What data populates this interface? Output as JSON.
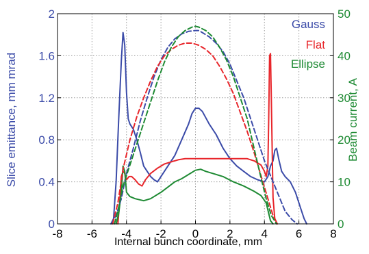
{
  "chart_data": {
    "type": "line",
    "xlabel": "Internal bunch coordinate, mm",
    "ylabel_left": "Slice emittance, mm mrad",
    "ylabel_right": "Beam current, A",
    "xlim": [
      -8,
      8
    ],
    "ylim_left": [
      0,
      2
    ],
    "ylim_right": [
      0,
      50
    ],
    "x_ticks": [
      "-8",
      "-6",
      "-4",
      "-2",
      "0",
      "2",
      "4",
      "6",
      "8"
    ],
    "y_left_ticks": [
      "0",
      "0.4",
      "0.8",
      "1.2",
      "1.6",
      "2"
    ],
    "y_right_ticks": [
      "0",
      "10",
      "20",
      "30",
      "40",
      "50"
    ],
    "grid": true,
    "legend": [
      {
        "name": "Gauss",
        "color": "#3b4ba8"
      },
      {
        "name": "Flat",
        "color": "#e8262b"
      },
      {
        "name": "Ellipse",
        "color": "#1e8a33"
      }
    ],
    "series": [
      {
        "name": "Gauss",
        "quantity": "emittance",
        "axis": "left",
        "style": "solid",
        "color": "#3b4ba8",
        "x": [
          -4.9,
          -4.75,
          -4.6,
          -4.45,
          -4.3,
          -4.2,
          -4.1,
          -4.0,
          -3.9,
          -3.8,
          -3.6,
          -3.4,
          -3.2,
          -3.0,
          -2.8,
          -2.6,
          -2.4,
          -2.2,
          -2.0,
          -1.6,
          -1.2,
          -0.8,
          -0.4,
          -0.2,
          0.0,
          0.2,
          0.4,
          0.8,
          1.2,
          1.6,
          2.0,
          2.4,
          2.8,
          3.2,
          3.6,
          4.0,
          4.2,
          4.35,
          4.5,
          4.6,
          4.7,
          4.85,
          5.0,
          5.2,
          5.5,
          5.8,
          6.1,
          6.3,
          6.45
        ],
        "y": [
          0.0,
          0.05,
          0.4,
          1.0,
          1.55,
          1.82,
          1.7,
          1.25,
          1.0,
          0.95,
          0.9,
          0.8,
          0.68,
          0.55,
          0.5,
          0.45,
          0.42,
          0.4,
          0.45,
          0.55,
          0.65,
          0.8,
          0.95,
          1.05,
          1.1,
          1.1,
          1.07,
          0.95,
          0.85,
          0.72,
          0.62,
          0.55,
          0.5,
          0.45,
          0.42,
          0.4,
          0.45,
          0.55,
          0.6,
          0.7,
          0.72,
          0.6,
          0.5,
          0.45,
          0.4,
          0.3,
          0.15,
          0.05,
          0.0
        ]
      },
      {
        "name": "Flat",
        "quantity": "emittance",
        "axis": "left",
        "style": "solid",
        "color": "#e8262b",
        "x": [
          -4.5,
          -4.4,
          -4.3,
          -4.2,
          -4.1,
          -4.0,
          -3.85,
          -3.7,
          -3.5,
          -3.3,
          -3.1,
          -2.9,
          -2.6,
          -2.2,
          -1.8,
          -1.4,
          -1.0,
          -0.6,
          -0.2,
          0.2,
          0.6,
          1.0,
          1.4,
          1.8,
          2.2,
          2.6,
          3.0,
          3.4,
          3.8,
          4.0,
          4.1,
          4.2,
          4.25,
          4.3,
          4.35,
          4.4,
          4.45,
          4.5,
          4.6,
          4.75
        ],
        "y": [
          0.0,
          0.2,
          0.45,
          0.5,
          0.48,
          0.42,
          0.45,
          0.45,
          0.42,
          0.38,
          0.36,
          0.42,
          0.48,
          0.53,
          0.57,
          0.59,
          0.61,
          0.62,
          0.62,
          0.62,
          0.62,
          0.62,
          0.62,
          0.62,
          0.62,
          0.62,
          0.62,
          0.6,
          0.56,
          0.5,
          0.45,
          0.55,
          1.0,
          1.6,
          1.62,
          1.2,
          0.7,
          0.25,
          0.05,
          0.0
        ]
      },
      {
        "name": "Ellipse",
        "quantity": "emittance",
        "axis": "left",
        "style": "solid",
        "color": "#1e8a33",
        "x": [
          -4.6,
          -4.45,
          -4.3,
          -4.2,
          -4.1,
          -4.0,
          -3.8,
          -3.5,
          -3.0,
          -2.6,
          -2.0,
          -1.6,
          -1.2,
          -0.8,
          -0.4,
          0.0,
          0.3,
          0.6,
          1.0,
          1.6,
          2.2,
          2.8,
          3.4,
          3.8,
          4.1,
          4.25,
          4.35,
          4.5
        ],
        "y": [
          0.0,
          0.1,
          0.3,
          0.55,
          0.5,
          0.3,
          0.26,
          0.24,
          0.22,
          0.24,
          0.3,
          0.35,
          0.4,
          0.43,
          0.47,
          0.51,
          0.52,
          0.5,
          0.48,
          0.45,
          0.4,
          0.36,
          0.31,
          0.27,
          0.2,
          0.1,
          0.03,
          0.0
        ]
      },
      {
        "name": "Gauss",
        "quantity": "current",
        "axis": "right",
        "style": "dashed",
        "color": "#3b4ba8",
        "x": [
          -4.9,
          -4.6,
          -4.3,
          -4.0,
          -3.6,
          -3.2,
          -2.8,
          -2.4,
          -2.0,
          -1.6,
          -1.2,
          -0.8,
          -0.4,
          0.0,
          0.2,
          0.4,
          0.8,
          1.2,
          1.6,
          2.0,
          2.4,
          2.8,
          3.2,
          3.6,
          4.0,
          4.4,
          4.8,
          5.2,
          5.6,
          5.9
        ],
        "y": [
          0.0,
          2.0,
          6.0,
          12.0,
          18.0,
          24.5,
          30.0,
          35.0,
          39.0,
          42.0,
          44.0,
          45.2,
          45.8,
          46.0,
          46.0,
          45.5,
          44.5,
          43.0,
          41.0,
          38.0,
          34.0,
          30.0,
          25.0,
          20.0,
          15.0,
          11.0,
          7.0,
          3.0,
          1.0,
          0.0
        ]
      },
      {
        "name": "Flat",
        "quantity": "current",
        "axis": "right",
        "style": "dashed",
        "color": "#e8262b",
        "x": [
          -4.8,
          -4.5,
          -4.2,
          -3.8,
          -3.4,
          -3.0,
          -2.6,
          -2.2,
          -1.8,
          -1.4,
          -1.0,
          -0.6,
          -0.2,
          0.2,
          0.6,
          1.0,
          1.4,
          1.8,
          2.2,
          2.6,
          3.0,
          3.4,
          3.8,
          4.2,
          4.5,
          4.75
        ],
        "y": [
          0.0,
          5.0,
          13.0,
          20.0,
          25.5,
          30.0,
          34.0,
          37.5,
          40.0,
          41.5,
          42.5,
          43.0,
          43.0,
          42.5,
          41.5,
          40.0,
          37.5,
          34.5,
          31.0,
          26.5,
          22.0,
          17.0,
          11.5,
          6.0,
          2.0,
          0.0
        ]
      },
      {
        "name": "Ellipse",
        "quantity": "current",
        "axis": "right",
        "style": "dashed",
        "color": "#1e8a33",
        "x": [
          -4.7,
          -4.5,
          -4.2,
          -3.8,
          -3.4,
          -3.0,
          -2.6,
          -2.2,
          -1.8,
          -1.4,
          -1.0,
          -0.6,
          -0.2,
          0.0,
          0.2,
          0.6,
          1.0,
          1.4,
          1.8,
          2.2,
          2.6,
          3.0,
          3.4,
          3.8,
          4.1,
          4.4,
          4.7
        ],
        "y": [
          0.0,
          3.0,
          9.0,
          14.0,
          19.0,
          24.0,
          29.0,
          34.0,
          38.5,
          42.0,
          44.5,
          46.0,
          46.8,
          47.0,
          46.8,
          46.0,
          44.5,
          42.0,
          39.0,
          35.0,
          30.0,
          25.0,
          18.0,
          11.0,
          6.0,
          2.0,
          0.0
        ]
      }
    ]
  }
}
